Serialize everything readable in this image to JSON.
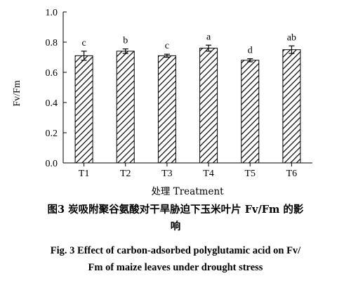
{
  "chart_data": {
    "type": "bar",
    "categories": [
      "T1",
      "T2",
      "T3",
      "T4",
      "T5",
      "T6"
    ],
    "series": [
      {
        "name": "",
        "values": [
          0.71,
          0.74,
          0.71,
          0.76,
          0.68,
          0.75
        ],
        "errors": [
          0.03,
          0.015,
          0.01,
          0.02,
          0.01,
          0.025
        ],
        "significance": [
          "c",
          "b",
          "c",
          "a",
          "d",
          "ab"
        ]
      }
    ],
    "xlabel": "处理 Treatment",
    "ylabel": "Fv/Fm",
    "ylim": [
      0,
      1.0
    ],
    "yticks": [
      "0.0",
      "0.2",
      "0.4",
      "0.6",
      "0.8",
      "1.0"
    ],
    "pattern": "diagonal-hatch",
    "grid": false,
    "legend": "none"
  },
  "caption": {
    "cn_line1": "图3   炭吸附聚谷氨酸对干旱胁迫下玉米叶片 Fv/Fm 的影",
    "cn_line2": "响",
    "en_line1": "Fig. 3    Effect of carbon-adsorbed polyglutamic acid on Fv/",
    "en_line2": "Fm of maize leaves under drought stress"
  }
}
